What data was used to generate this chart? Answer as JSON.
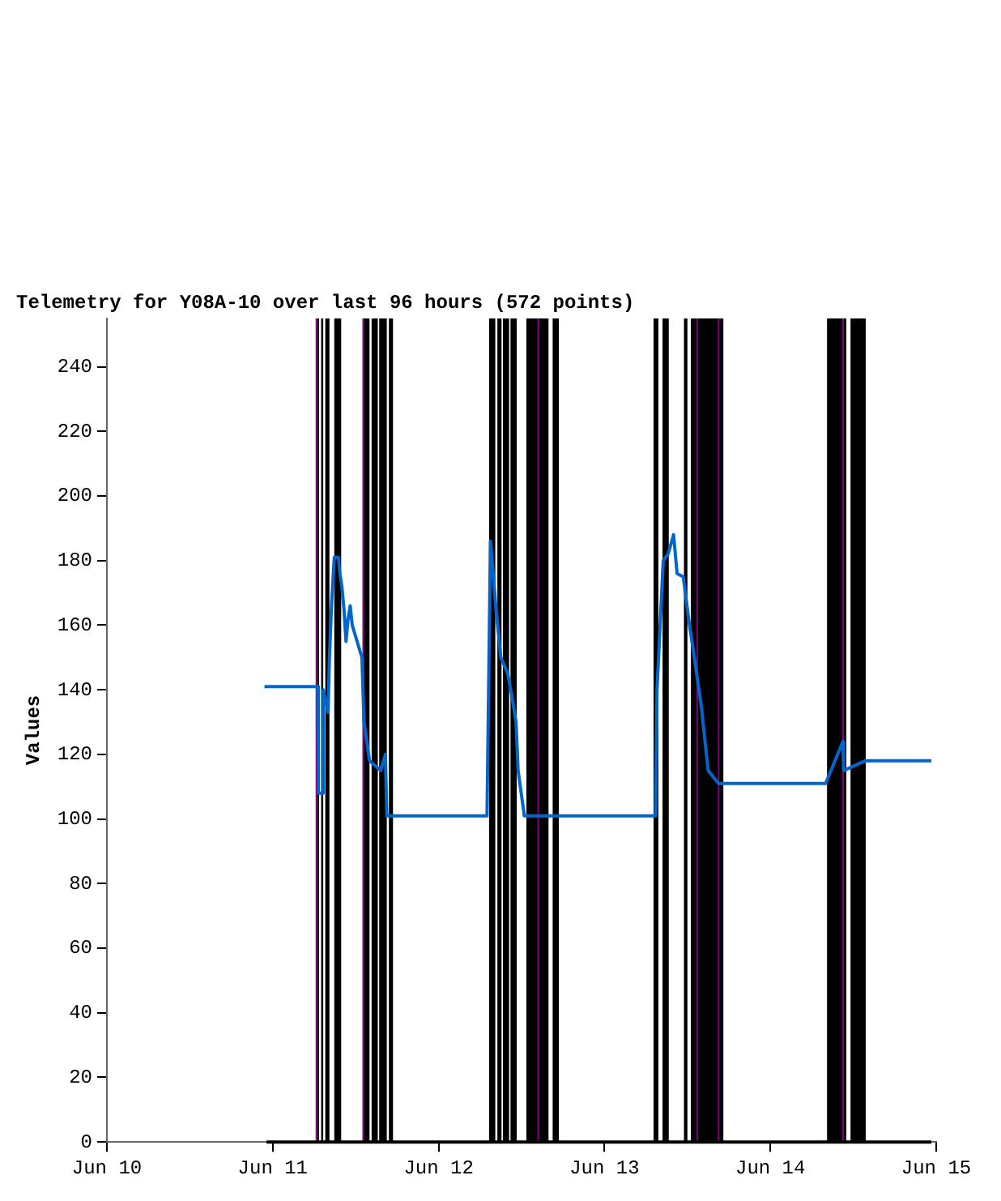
{
  "chart_data": {
    "type": "line",
    "title": "Telemetry for Y08A-10 over last 96 hours (572 points)",
    "ylabel": "Values",
    "xlim": [
      "--06-10",
      "--06-15"
    ],
    "xticks": [
      {
        "value": "--06-10",
        "label": "Jun 10"
      },
      {
        "value": "--06-11",
        "label": "Jun 11"
      },
      {
        "value": "--06-12",
        "label": "Jun 12"
      },
      {
        "value": "--06-13",
        "label": "Jun 13"
      },
      {
        "value": "--06-14",
        "label": "Jun 14"
      },
      {
        "value": "--06-15",
        "label": "Jun 15"
      }
    ],
    "ylim": [
      0,
      255
    ],
    "yticks": [
      0,
      20,
      40,
      60,
      80,
      100,
      120,
      140,
      160,
      180,
      200,
      220,
      240
    ],
    "legend": false,
    "marker": "none",
    "line_style": "solid",
    "series": [
      {
        "color": "#000000",
        "x": [
          "--06-10T23:06",
          "--06-14T23:18"
        ],
        "values": [
          0,
          0
        ]
      },
      {
        "color": "#0066cc",
        "x": [
          "--06-10T22:48",
          "--06-11T06:30",
          "--06-11T06:36",
          "--06-11T07:12",
          "--06-11T07:18",
          "--06-11T08:00",
          "--06-11T08:12",
          "--06-11T08:30",
          "--06-11T08:54",
          "--06-11T09:30",
          "--06-11T09:42",
          "--06-11T10:00",
          "--06-11T10:18",
          "--06-11T10:36",
          "--06-11T10:54",
          "--06-11T11:12",
          "--06-11T11:30",
          "--06-11T12:54",
          "--06-11T13:12",
          "--06-11T14:00",
          "--06-11T15:36",
          "--06-11T16:18",
          "--06-11T16:30",
          "--06-12T07:00",
          "--06-12T07:30",
          "--06-12T08:18",
          "--06-12T09:00",
          "--06-12T10:00",
          "--06-12T10:36",
          "--06-12T11:12",
          "--06-12T11:30",
          "--06-12T12:24",
          "--06-13T07:24",
          "--06-13T07:36",
          "--06-13T08:30",
          "--06-13T09:12",
          "--06-13T10:00",
          "--06-13T10:30",
          "--06-13T11:24",
          "--06-13T12:18",
          "--06-13T13:00",
          "--06-13T14:00",
          "--06-13T15:00",
          "--06-13T16:30",
          "--06-14T08:00",
          "--06-14T10:30",
          "--06-14T10:36",
          "--06-14T13:42",
          "--06-14T23:18"
        ],
        "values": [
          141,
          141,
          108,
          108,
          140,
          133,
          150,
          166,
          181,
          181,
          176,
          172,
          165,
          155,
          162,
          166,
          160,
          150,
          130,
          118,
          115,
          120,
          101,
          101,
          186,
          165,
          150,
          145,
          138,
          130,
          115,
          101,
          101,
          140,
          180,
          182,
          188,
          176,
          175,
          160,
          150,
          135,
          115,
          111,
          111,
          124,
          115,
          118,
          118
        ]
      }
    ],
    "bands": [
      {
        "axis": "x",
        "from": "--06-11T06:24",
        "to": "--06-11T06:42",
        "color": "#000000"
      },
      {
        "axis": "x",
        "from": "--06-11T07:00",
        "to": "--06-11T07:18",
        "color": "#000000"
      },
      {
        "axis": "x",
        "from": "--06-11T07:36",
        "to": "--06-11T08:12",
        "color": "#000000"
      },
      {
        "axis": "x",
        "from": "--06-11T08:54",
        "to": "--06-11T09:54",
        "color": "#000000"
      },
      {
        "axis": "x",
        "from": "--06-11T13:00",
        "to": "--06-11T14:00",
        "color": "#000000"
      },
      {
        "axis": "x",
        "from": "--06-11T14:18",
        "to": "--06-11T15:12",
        "color": "#000000"
      },
      {
        "axis": "x",
        "from": "--06-11T15:24",
        "to": "--06-11T16:30",
        "color": "#000000"
      },
      {
        "axis": "x",
        "from": "--06-11T16:48",
        "to": "--06-11T17:24",
        "color": "#000000"
      },
      {
        "axis": "x",
        "from": "--06-12T07:18",
        "to": "--06-12T08:12",
        "color": "#000000"
      },
      {
        "axis": "x",
        "from": "--06-12T08:30",
        "to": "--06-12T09:06",
        "color": "#000000"
      },
      {
        "axis": "x",
        "from": "--06-12T09:18",
        "to": "--06-12T10:12",
        "color": "#000000"
      },
      {
        "axis": "x",
        "from": "--06-12T10:24",
        "to": "--06-12T11:18",
        "color": "#000000"
      },
      {
        "axis": "x",
        "from": "--06-12T12:42",
        "to": "--06-12T15:54",
        "color": "#000000"
      },
      {
        "axis": "x",
        "from": "--06-12T16:30",
        "to": "--06-12T17:24",
        "color": "#000000"
      },
      {
        "axis": "x",
        "from": "--06-13T07:06",
        "to": "--06-13T07:48",
        "color": "#000000"
      },
      {
        "axis": "x",
        "from": "--06-13T08:24",
        "to": "--06-13T09:18",
        "color": "#000000"
      },
      {
        "axis": "x",
        "from": "--06-13T11:30",
        "to": "--06-13T12:00",
        "color": "#000000"
      },
      {
        "axis": "x",
        "from": "--06-13T12:30",
        "to": "--06-13T17:12",
        "color": "#000000"
      },
      {
        "axis": "x",
        "from": "--06-14T08:12",
        "to": "--06-14T11:00",
        "color": "#000000"
      },
      {
        "axis": "x",
        "from": "--06-14T11:36",
        "to": "--06-14T13:48",
        "color": "#000000"
      },
      {
        "axis": "x",
        "from": "--06-11T06:12",
        "to": "--06-11T06:24",
        "color": "#800080"
      },
      {
        "axis": "x",
        "from": "--06-11T13:00",
        "to": "--06-11T13:12",
        "color": "#800080"
      },
      {
        "axis": "x",
        "from": "--06-12T14:18",
        "to": "--06-12T14:30",
        "color": "#800080"
      },
      {
        "axis": "x",
        "from": "--06-13T13:18",
        "to": "--06-13T13:30",
        "color": "#800080"
      },
      {
        "axis": "x",
        "from": "--06-13T16:24",
        "to": "--06-13T16:36",
        "color": "#800080"
      },
      {
        "axis": "x",
        "from": "--06-14T10:24",
        "to": "--06-14T10:36",
        "color": "#800080"
      }
    ]
  }
}
